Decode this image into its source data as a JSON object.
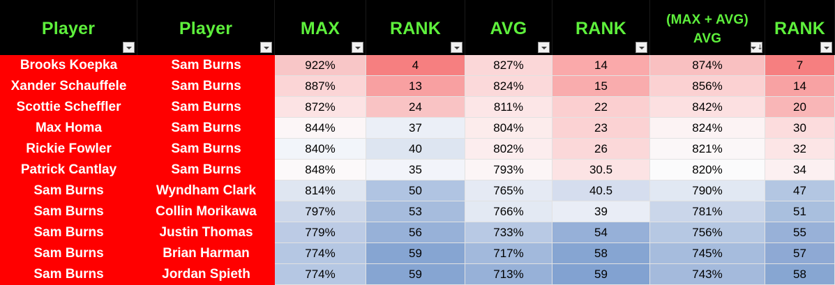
{
  "headers": [
    {
      "label": "Player",
      "sorted": false
    },
    {
      "label": "Player",
      "sorted": false
    },
    {
      "label": "MAX",
      "sorted": false
    },
    {
      "label": "RANK",
      "sorted": false
    },
    {
      "label": "AVG",
      "sorted": false
    },
    {
      "label": "RANK",
      "sorted": false
    },
    {
      "label_line1": "(MAX + AVG)",
      "label_line2": "AVG",
      "sorted": true,
      "sort_direction": "descending"
    },
    {
      "label": "RANK",
      "sorted": false
    }
  ],
  "rows": [
    {
      "player1": "Brooks Koepka",
      "player2": "Sam Burns",
      "max": "922%",
      "max_rank": "4",
      "avg": "827%",
      "avg_rank": "14",
      "combined": "874%",
      "rank": "7"
    },
    {
      "player1": "Xander Schauffele",
      "player2": "Sam Burns",
      "max": "887%",
      "max_rank": "13",
      "avg": "824%",
      "avg_rank": "15",
      "combined": "856%",
      "rank": "14"
    },
    {
      "player1": "Scottie Scheffler",
      "player2": "Sam Burns",
      "max": "872%",
      "max_rank": "24",
      "avg": "811%",
      "avg_rank": "22",
      "combined": "842%",
      "rank": "20"
    },
    {
      "player1": "Max Homa",
      "player2": "Sam Burns",
      "max": "844%",
      "max_rank": "37",
      "avg": "804%",
      "avg_rank": "23",
      "combined": "824%",
      "rank": "30"
    },
    {
      "player1": "Rickie Fowler",
      "player2": "Sam Burns",
      "max": "840%",
      "max_rank": "40",
      "avg": "802%",
      "avg_rank": "26",
      "combined": "821%",
      "rank": "32"
    },
    {
      "player1": "Patrick Cantlay",
      "player2": "Sam Burns",
      "max": "848%",
      "max_rank": "35",
      "avg": "793%",
      "avg_rank": "30.5",
      "combined": "820%",
      "rank": "34"
    },
    {
      "player1": "Sam Burns",
      "player2": "Wyndham Clark",
      "max": "814%",
      "max_rank": "50",
      "avg": "765%",
      "avg_rank": "40.5",
      "combined": "790%",
      "rank": "47"
    },
    {
      "player1": "Sam Burns",
      "player2": "Collin Morikawa",
      "max": "797%",
      "max_rank": "53",
      "avg": "766%",
      "avg_rank": "39",
      "combined": "781%",
      "rank": "51"
    },
    {
      "player1": "Sam Burns",
      "player2": "Justin Thomas",
      "max": "779%",
      "max_rank": "56",
      "avg": "733%",
      "avg_rank": "54",
      "combined": "756%",
      "rank": "55"
    },
    {
      "player1": "Sam Burns",
      "player2": "Brian Harman",
      "max": "774%",
      "max_rank": "59",
      "avg": "717%",
      "avg_rank": "58",
      "combined": "745%",
      "rank": "57"
    },
    {
      "player1": "Sam Burns",
      "player2": "Jordan Spieth",
      "max": "774%",
      "max_rank": "59",
      "avg": "713%",
      "avg_rank": "59",
      "combined": "743%",
      "rank": "58"
    }
  ],
  "row_colors": [
    {
      "max": "#f8c6c7",
      "max_rank": "#f67f80",
      "avg": "#fbd7d8",
      "avg_rank": "#faa9aa",
      "combined": "#f9c0c1",
      "rank": "#f67f80"
    },
    {
      "max": "#fbd5d6",
      "max_rank": "#f8a0a1",
      "avg": "#fbd9da",
      "avg_rank": "#f9acad",
      "combined": "#fbd1d2",
      "rank": "#f8a2a3"
    },
    {
      "max": "#fce3e4",
      "max_rank": "#f9c3c4",
      "avg": "#fce6e7",
      "avg_rank": "#fbcfd0",
      "combined": "#fce0e1",
      "rank": "#f9b6b7"
    },
    {
      "max": "#fcf6f7",
      "max_rank": "#ebeff7",
      "avg": "#fcecec",
      "avg_rank": "#fbd2d3",
      "combined": "#fcf3f4",
      "rank": "#fcdcdd"
    },
    {
      "max": "#f2f5fa",
      "max_rank": "#dde5f1",
      "avg": "#fcedee",
      "avg_rank": "#fbd8d9",
      "combined": "#fbf7f8",
      "rank": "#fce5e6"
    },
    {
      "max": "#fcf9fa",
      "max_rank": "#f2f4fa",
      "avg": "#fcf5f6",
      "avg_rank": "#fce3e4",
      "combined": "#fbfbfc",
      "rank": "#fcf0f1"
    },
    {
      "max": "#dfe6f1",
      "max_rank": "#b0c4e2",
      "avg": "#e5eaf4",
      "avg_rank": "#d5ddee",
      "combined": "#e1e8f3",
      "rank": "#b3c6e2"
    },
    {
      "max": "#ccd7ea",
      "max_rank": "#a6bcdd",
      "avg": "#e3e9f3",
      "avg_rank": "#e9edf6",
      "combined": "#cad6ea",
      "rank": "#a9bfde"
    },
    {
      "max": "#bccbe5",
      "max_rank": "#97b1d8",
      "avg": "#b8c9e4",
      "avg_rank": "#96b0d8",
      "combined": "#b6c8e3",
      "rank": "#98b1d8"
    },
    {
      "max": "#b5c7e3",
      "max_rank": "#86a5d2",
      "avg": "#a2b9dc",
      "avg_rank": "#86a5d2",
      "combined": "#a6bcdd",
      "rank": "#8ea9d4"
    },
    {
      "max": "#b5c7e3",
      "max_rank": "#86a5d2",
      "avg": "#97b1d8",
      "avg_rank": "#82a2d1",
      "combined": "#a4badc",
      "rank": "#87a6d2"
    }
  ]
}
